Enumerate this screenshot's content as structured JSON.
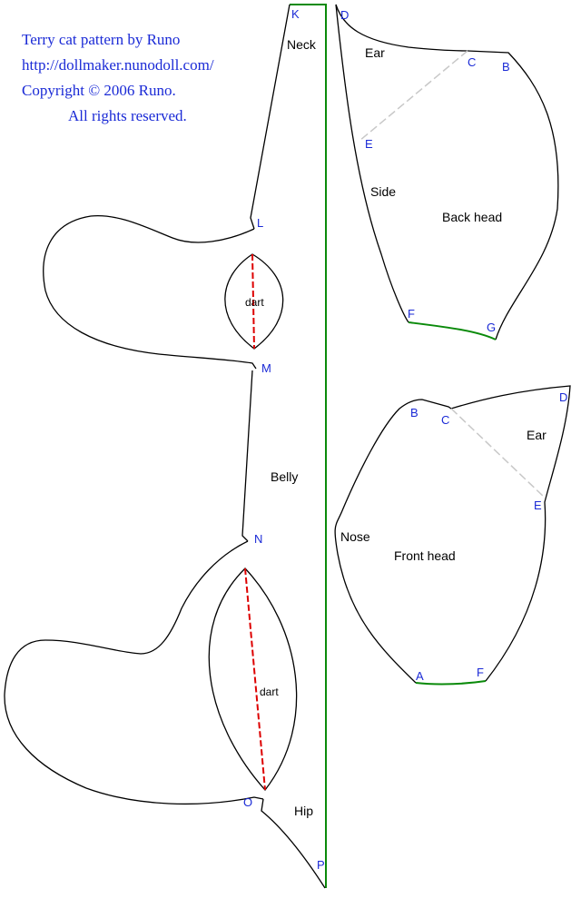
{
  "header": {
    "title": "Terry cat  pattern by Runo",
    "url": "http://dollmaker.nunodoll.com/",
    "copyright": "Copyright © 2006 Runo.",
    "rights": "All rights reserved."
  },
  "colors": {
    "text_blue": "#1a2ad6",
    "outline": "#000000",
    "fold_line": "#0a8a0a",
    "dart_line": "#dd0000",
    "guide_line": "#c8c8c8"
  },
  "body_piece": {
    "region_labels": {
      "neck": "Neck",
      "belly": "Belly",
      "hip": "Hip"
    },
    "dart_label": "dart",
    "points": {
      "k": "K",
      "l": "L",
      "m": "M",
      "n": "N",
      "o": "O",
      "p": "P"
    }
  },
  "back_head": {
    "labels": {
      "ear": "Ear",
      "side": "Side",
      "back_head": "Back head"
    },
    "points": {
      "d": "D",
      "c": "C",
      "b": "B",
      "e": "E",
      "f": "F",
      "g": "G"
    }
  },
  "front_head": {
    "labels": {
      "ear": "Ear",
      "nose": "Nose",
      "front_head": "Front head"
    },
    "points": {
      "b": "B",
      "c": "C",
      "d": "D",
      "e": "E",
      "a": "A",
      "f": "F"
    }
  }
}
